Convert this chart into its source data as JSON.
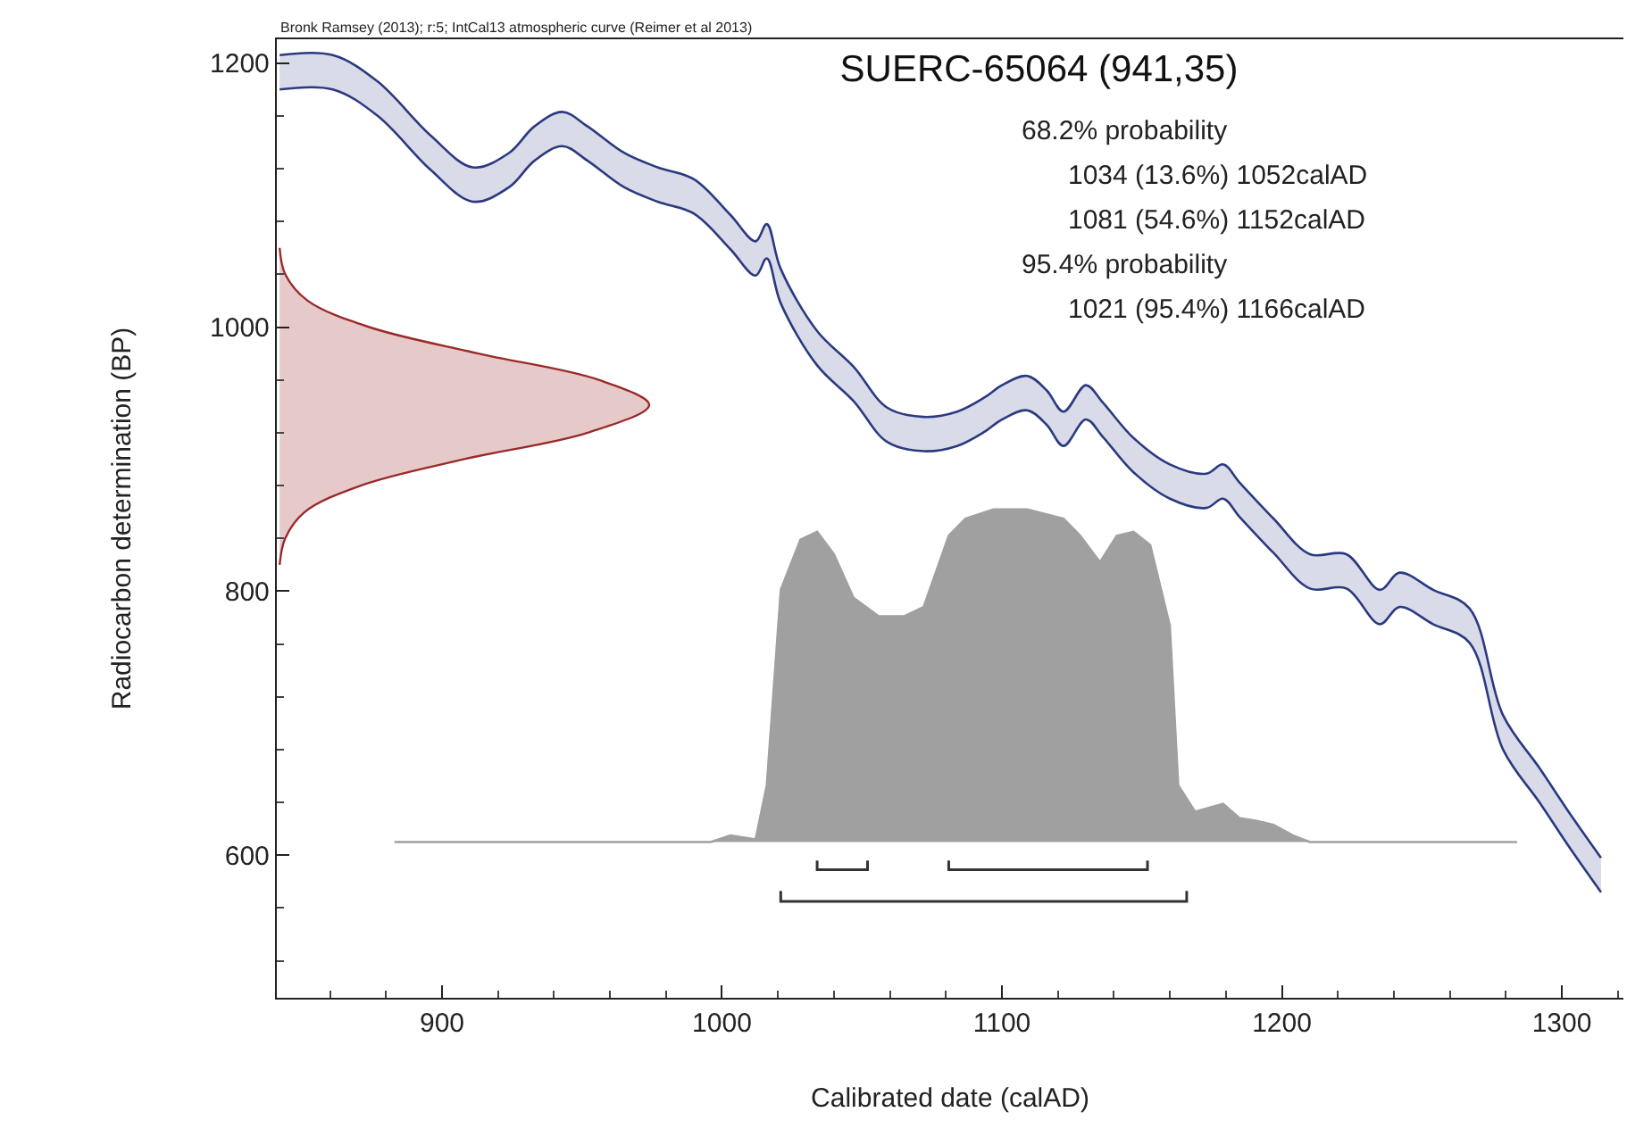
{
  "chart_data": {
    "type": "line",
    "title": "SUERC-65064 (941,35)",
    "xlabel": "Calibrated date (calAD)",
    "ylabel": "Radiocarbon determination (BP)",
    "annotations": [
      "Bronk Ramsey (2013); r:5; IntCal13 atmospheric curve (Reimer et al 2013)",
      "68.2% probability",
      "1034 (13.6%) 1052calAD",
      "1081 (54.6%) 1152calAD",
      "95.4% probability",
      "1021 (95.4%) 1166calAD"
    ],
    "xlim": [
      841,
      1322
    ],
    "xticks": [
      900,
      1000,
      1100,
      1200,
      1300
    ],
    "ylim": [
      492,
      1218
    ],
    "yticks": [
      600,
      800,
      1000,
      1200
    ],
    "series": [
      {
        "type": "area",
        "color": "#2b3a80",
        "x": [
          842,
          861,
          877,
          896,
          911,
          924,
          933,
          943,
          952,
          965,
          977,
          990,
          1003,
          1012,
          1016,
          1021,
          1034,
          1047,
          1059,
          1072,
          1084,
          1094,
          1100,
          1109,
          1116,
          1122,
          1130,
          1136,
          1147,
          1160,
          1173,
          1179,
          1185,
          1197,
          1210,
          1223,
          1235,
          1242,
          1254,
          1267,
          1279,
          1292,
          1304,
          1314
        ],
        "values": [
          1206,
          1206,
          1186,
          1145,
          1121,
          1132,
          1152,
          1163,
          1152,
          1132,
          1121,
          1112,
          1085,
          1065,
          1078,
          1044,
          997,
          970,
          939,
          932,
          936,
          947,
          956,
          963,
          952,
          936,
          956,
          943,
          916,
          896,
          889,
          896,
          882,
          855,
          828,
          828,
          801,
          814,
          801,
          787,
          706,
          666,
          628,
          598
        ]
      },
      {
        "color": "#2b3a80",
        "x": [
          842,
          861,
          877,
          896,
          911,
          924,
          933,
          943,
          952,
          965,
          977,
          990,
          1003,
          1012,
          1016,
          1021,
          1034,
          1047,
          1059,
          1072,
          1084,
          1094,
          1100,
          1109,
          1116,
          1122,
          1130,
          1136,
          1147,
          1160,
          1173,
          1179,
          1185,
          1197,
          1210,
          1223,
          1235,
          1242,
          1254,
          1267,
          1279,
          1292,
          1304,
          1314
        ],
        "values": [
          1180,
          1180,
          1160,
          1119,
          1095,
          1106,
          1126,
          1137,
          1126,
          1106,
          1095,
          1086,
          1059,
          1039,
          1052,
          1018,
          971,
          944,
          913,
          906,
          910,
          921,
          930,
          937,
          926,
          910,
          930,
          917,
          890,
          870,
          863,
          870,
          856,
          829,
          802,
          802,
          775,
          788,
          775,
          761,
          680,
          640,
          602,
          572
        ]
      },
      {
        "type": "area",
        "color": "#a0a0a0",
        "x": [
          883,
          996,
          1003,
          1012,
          1016,
          1021,
          1028,
          1034,
          1040,
          1047,
          1056,
          1065,
          1072,
          1081,
          1087,
          1097,
          1109,
          1122,
          1128,
          1135,
          1141,
          1147,
          1153,
          1160,
          1163,
          1169,
          1179,
          1185,
          1191,
          1197,
          1204,
          1210,
          1284
        ],
        "values": [
          610,
          610,
          615,
          612,
          653,
          801,
          839,
          845,
          828,
          795,
          781,
          781,
          788,
          842,
          855,
          862,
          862,
          855,
          842,
          822,
          842,
          845,
          835,
          774,
          653,
          633,
          639,
          628,
          626,
          623,
          615,
          610,
          610
        ]
      },
      {
        "type": "area",
        "color": "#9a2a2a",
        "x": [
          842,
          844,
          852,
          874,
          913,
          956,
          974,
          952,
          908,
          871,
          851,
          844,
          842
        ],
        "values": [
          1060,
          1040,
          1020,
          1000,
          980,
          960,
          941,
          920,
          900,
          880,
          860,
          840,
          820
        ]
      },
      {
        "color": "#333333",
        "x": [
          1034,
          1034,
          1052,
          1052
        ],
        "values": [
          596,
          589,
          589,
          596
        ]
      },
      {
        "color": "#333333",
        "x": [
          1081,
          1081,
          1152,
          1152
        ],
        "values": [
          596,
          589,
          589,
          596
        ]
      },
      {
        "color": "#333333",
        "x": [
          1021,
          1021,
          1166,
          1166
        ],
        "values": [
          573,
          565,
          565,
          573
        ]
      }
    ]
  }
}
